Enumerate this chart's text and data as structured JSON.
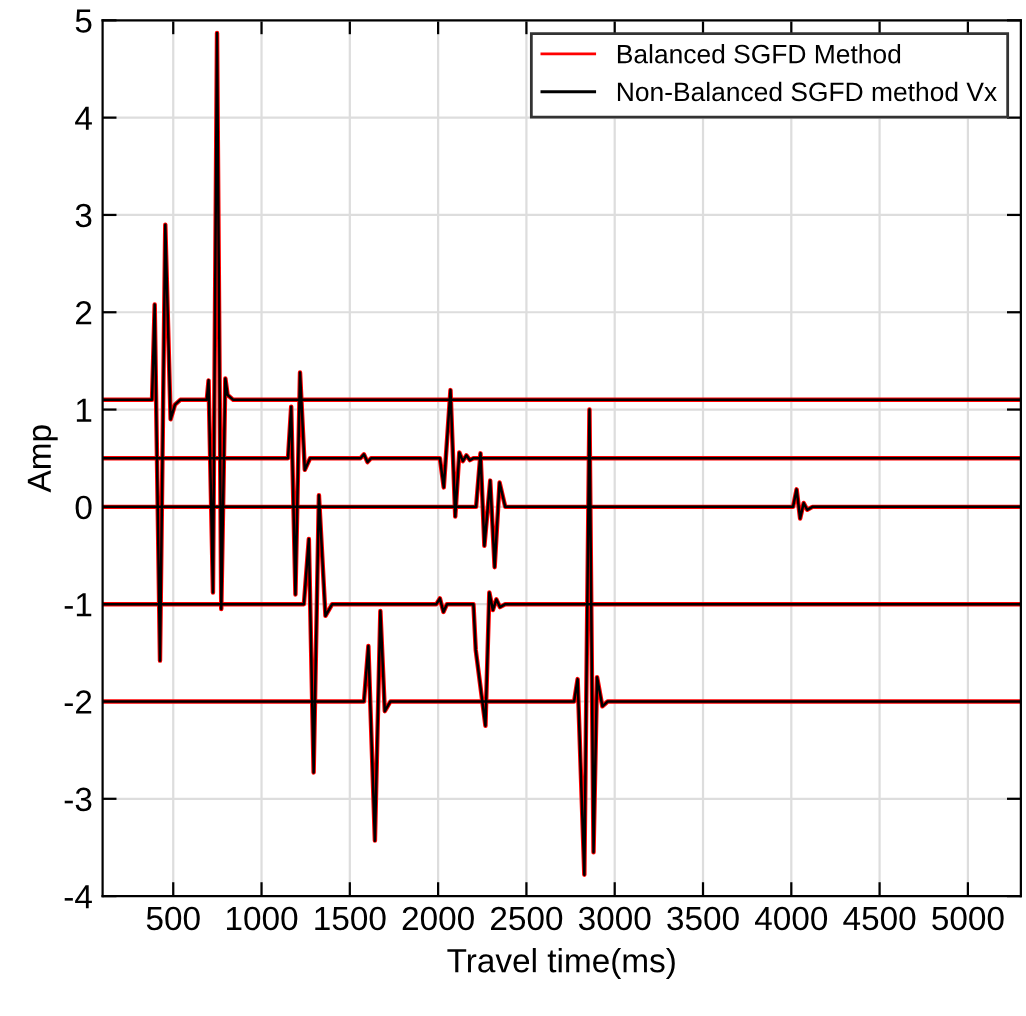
{
  "chart_data": {
    "type": "line",
    "xlabel": "Travel time(ms)",
    "ylabel": "Amp",
    "xlim": [
      100,
      5300
    ],
    "ylim": [
      -4,
      5
    ],
    "xticks": [
      500,
      1000,
      1500,
      2000,
      2500,
      3000,
      3500,
      4000,
      4500,
      5000
    ],
    "yticks": [
      -4,
      -3,
      -2,
      -1,
      0,
      1,
      2,
      3,
      4,
      5
    ],
    "grid": true,
    "legend": "top right",
    "line_style": "solid",
    "marker": "none",
    "series": [
      {
        "name": "Balanced SGFD Method",
        "color": "#ff0000",
        "x": [
          100,
          380,
          395,
          425,
          455,
          485,
          510,
          540,
          690,
          700,
          725,
          748,
          772,
          795,
          808,
          840,
          5300
        ],
        "values": [
          1.1,
          1.1,
          2.08,
          -1.58,
          2.9,
          0.9,
          1.05,
          1.1,
          1.1,
          1.3,
          -0.88,
          4.87,
          -1.05,
          1.32,
          1.15,
          1.1,
          1.1
        ]
      },
      {
        "color": "#ff0000",
        "x": [
          100,
          1150,
          1168,
          1192,
          1218,
          1245,
          1275,
          1560,
          1580,
          1600,
          1620,
          2010,
          2032,
          2070,
          2097,
          2120,
          2140,
          2160,
          2180,
          2200,
          5300
        ],
        "values": [
          0.5,
          0.5,
          1.03,
          -0.9,
          1.38,
          0.38,
          0.5,
          0.5,
          0.54,
          0.46,
          0.5,
          0.5,
          0.2,
          1.2,
          -0.1,
          0.56,
          0.47,
          0.53,
          0.48,
          0.5,
          0.5
        ]
      },
      {
        "color": "#ff0000",
        "x": [
          100,
          2215,
          2240,
          2262,
          2295,
          2320,
          2348,
          2380,
          4010,
          4030,
          4050,
          4070,
          4090,
          4120,
          5300
        ],
        "values": [
          0,
          0,
          0.55,
          -0.4,
          0.27,
          -0.62,
          0.25,
          0,
          0,
          0.18,
          -0.12,
          0.04,
          -0.03,
          0,
          0
        ]
      },
      {
        "color": "#ff0000",
        "x": [
          100,
          1240,
          1268,
          1295,
          1325,
          1362,
          1400,
          1990,
          2010,
          2030,
          2050,
          2200,
          2213,
          2268,
          2290,
          2310,
          2330,
          2350,
          2380,
          5300
        ],
        "values": [
          -1,
          -1,
          -0.33,
          -2.73,
          0.12,
          -1.12,
          -1,
          -1,
          -0.94,
          -1.08,
          -1,
          -1,
          -1.47,
          -2.25,
          -0.88,
          -1.06,
          -0.95,
          -1.03,
          -1,
          -1
        ]
      },
      {
        "color": "#ff0000",
        "x": [
          100,
          1580,
          1605,
          1642,
          1673,
          1698,
          1730,
          2770,
          2790,
          2828,
          2857,
          2880,
          2900,
          2930,
          2960,
          5300
        ],
        "values": [
          -2,
          -2,
          -1.43,
          -3.43,
          -1.07,
          -2.1,
          -2,
          -2,
          -1.77,
          -3.78,
          1.0,
          -3.55,
          -1.75,
          -2.05,
          -2,
          -2
        ]
      },
      {
        "name": "Non-Balanced SGFD method Vx",
        "color": "#000000",
        "x": [
          100,
          380,
          395,
          425,
          455,
          485,
          510,
          540,
          690,
          700,
          725,
          748,
          772,
          795,
          808,
          840,
          5300
        ],
        "values": [
          1.1,
          1.1,
          2.08,
          -1.58,
          2.9,
          0.9,
          1.05,
          1.1,
          1.1,
          1.3,
          -0.88,
          4.87,
          -1.05,
          1.32,
          1.15,
          1.1,
          1.1
        ]
      },
      {
        "color": "#000000",
        "x": [
          100,
          1150,
          1168,
          1192,
          1218,
          1245,
          1275,
          1560,
          1580,
          1600,
          1620,
          2010,
          2032,
          2070,
          2097,
          2120,
          2140,
          2160,
          2180,
          2200,
          5300
        ],
        "values": [
          0.5,
          0.5,
          1.03,
          -0.9,
          1.38,
          0.38,
          0.5,
          0.5,
          0.54,
          0.46,
          0.5,
          0.5,
          0.2,
          1.2,
          -0.1,
          0.56,
          0.47,
          0.53,
          0.48,
          0.5,
          0.5
        ]
      },
      {
        "color": "#000000",
        "x": [
          100,
          2215,
          2240,
          2262,
          2295,
          2320,
          2348,
          2380,
          4010,
          4030,
          4050,
          4070,
          4090,
          4120,
          5300
        ],
        "values": [
          0,
          0,
          0.55,
          -0.4,
          0.27,
          -0.62,
          0.25,
          0,
          0,
          0.18,
          -0.12,
          0.04,
          -0.03,
          0,
          0
        ]
      },
      {
        "color": "#000000",
        "x": [
          100,
          1240,
          1268,
          1295,
          1325,
          1362,
          1400,
          1990,
          2010,
          2030,
          2050,
          2200,
          2213,
          2268,
          2290,
          2310,
          2330,
          2350,
          2380,
          5300
        ],
        "values": [
          -1,
          -1,
          -0.33,
          -2.73,
          0.12,
          -1.12,
          -1,
          -1,
          -0.94,
          -1.08,
          -1,
          -1,
          -1.47,
          -2.25,
          -0.88,
          -1.06,
          -0.95,
          -1.03,
          -1,
          -1
        ]
      },
      {
        "color": "#000000",
        "x": [
          100,
          1580,
          1605,
          1642,
          1673,
          1698,
          1730,
          2770,
          2790,
          2828,
          2857,
          2880,
          2900,
          2930,
          2960,
          5300
        ],
        "values": [
          -2,
          -2,
          -1.43,
          -3.43,
          -1.07,
          -2.1,
          -2,
          -2,
          -1.77,
          -3.78,
          1.0,
          -3.55,
          -1.75,
          -2.05,
          -2,
          -2
        ]
      }
    ]
  }
}
